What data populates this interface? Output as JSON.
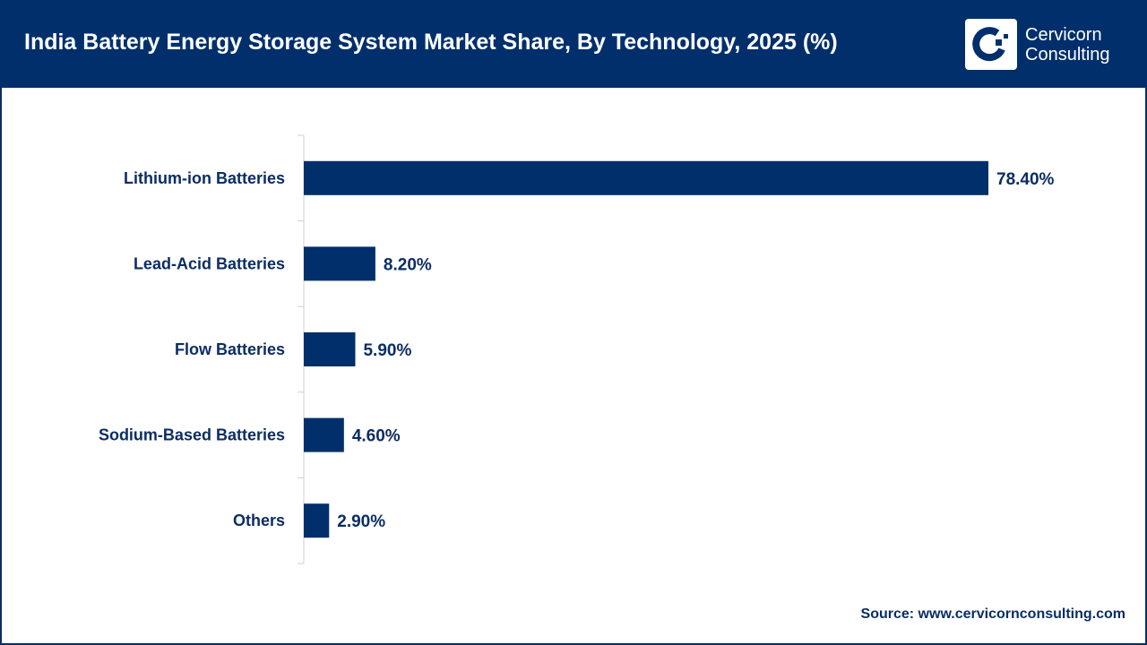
{
  "header": {
    "title": "India Battery Energy Storage System Market Share, By Technology, 2025 (%)"
  },
  "logo": {
    "line1": "Cervicorn",
    "line2": "Consulting"
  },
  "source": "Source: www.cervicornconsulting.com",
  "colors": {
    "bar": "#002f6c",
    "header": "#002f6c",
    "text": "#0b2d63"
  },
  "chart_data": {
    "type": "bar",
    "orientation": "horizontal",
    "title": "India Battery Energy Storage System Market Share, By Technology, 2025 (%)",
    "categories": [
      "Lithium-ion Batteries",
      "Lead-Acid Batteries",
      "Flow Batteries",
      "Sodium-Based Batteries",
      "Others"
    ],
    "values": [
      78.4,
      8.2,
      5.9,
      4.6,
      2.9
    ],
    "labels": [
      "78.40%",
      "8.20%",
      "5.90%",
      "4.60%",
      "2.90%"
    ],
    "xlim": [
      0,
      80
    ],
    "grid": false
  }
}
